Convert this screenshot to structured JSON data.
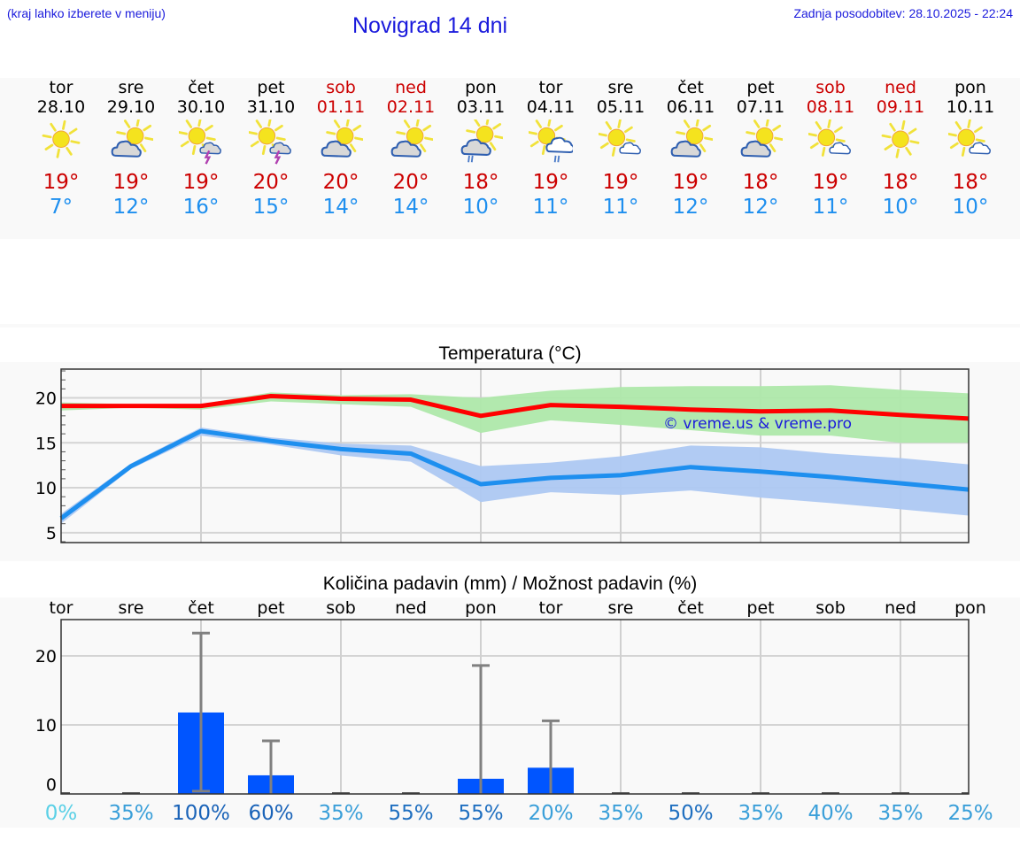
{
  "header": {
    "hint": "(kraj lahko izberete v meniju)",
    "title": "Novigrad 14 dni",
    "updated": "Zadnja posodobitev: 28.10.2025 - 22:24"
  },
  "days": [
    {
      "name": "tor",
      "date": "28.10",
      "icon": "sun-icon",
      "max": "19°",
      "min": "7°",
      "weekend": false
    },
    {
      "name": "sre",
      "date": "29.10",
      "icon": "sun-cloud-icon",
      "max": "19°",
      "min": "12°",
      "weekend": false
    },
    {
      "name": "čet",
      "date": "30.10",
      "icon": "sun-thunderstorm-icon",
      "max": "19°",
      "min": "16°",
      "weekend": false
    },
    {
      "name": "pet",
      "date": "31.10",
      "icon": "sun-thunderstorm-icon",
      "max": "20°",
      "min": "15°",
      "weekend": false
    },
    {
      "name": "sob",
      "date": "01.11",
      "icon": "sun-cloud-icon",
      "max": "20°",
      "min": "14°",
      "weekend": true
    },
    {
      "name": "ned",
      "date": "02.11",
      "icon": "sun-cloud-icon",
      "max": "20°",
      "min": "14°",
      "weekend": true
    },
    {
      "name": "pon",
      "date": "03.11",
      "icon": "sun-cloud-rain-icon",
      "max": "18°",
      "min": "10°",
      "weekend": false
    },
    {
      "name": "tor",
      "date": "04.11",
      "icon": "sun-light-cloud-rain-icon",
      "max": "19°",
      "min": "11°",
      "weekend": false
    },
    {
      "name": "sre",
      "date": "05.11",
      "icon": "sun-small-cloud-icon",
      "max": "19°",
      "min": "11°",
      "weekend": false
    },
    {
      "name": "čet",
      "date": "06.11",
      "icon": "sun-cloud-icon",
      "max": "19°",
      "min": "12°",
      "weekend": false
    },
    {
      "name": "pet",
      "date": "07.11",
      "icon": "sun-cloud-icon",
      "max": "18°",
      "min": "12°",
      "weekend": false
    },
    {
      "name": "sob",
      "date": "08.11",
      "icon": "sun-small-cloud-icon",
      "max": "19°",
      "min": "11°",
      "weekend": true
    },
    {
      "name": "ned",
      "date": "09.11",
      "icon": "sun-icon",
      "max": "18°",
      "min": "10°",
      "weekend": true
    },
    {
      "name": "pon",
      "date": "10.11",
      "icon": "sun-small-cloud-icon",
      "max": "18°",
      "min": "10°",
      "weekend": false
    }
  ],
  "colors": {
    "link_blue": "#1a1adc",
    "weekend_red": "#cc0000",
    "max_red": "#cc0000",
    "min_blue": "#1e8fef",
    "temp_max_line": "#ff0000",
    "temp_max_band": "#aee8aa",
    "temp_min_line": "#1e8fef",
    "temp_min_band": "#adc8f2",
    "precip_bar": "#0055ff",
    "error_bar": "#808080",
    "watermark": "#1a1adc"
  },
  "chart_data": [
    {
      "type": "line",
      "title": "Temperatura (°C)",
      "xlabel": "",
      "ylabel": "",
      "categories": [
        "28.10",
        "29.10",
        "30.10",
        "31.10",
        "01.11",
        "02.11",
        "03.11",
        "04.11",
        "05.11",
        "06.11",
        "07.11",
        "08.11",
        "09.11",
        "10.11"
      ],
      "ylim": [
        3.9,
        23.2
      ],
      "yticks": [
        5,
        10,
        15,
        20
      ],
      "grid": true,
      "watermark": "© vreme.us & vreme.pro",
      "series": [
        {
          "name": "max",
          "values": [
            19.1,
            19.1,
            19.1,
            20.2,
            19.9,
            19.8,
            18.0,
            19.2,
            19.0,
            18.7,
            18.5,
            18.6,
            18.1,
            17.7
          ],
          "band_low": [
            18.6,
            18.9,
            18.7,
            19.6,
            19.3,
            19.0,
            16.1,
            17.5,
            17.0,
            16.4,
            15.8,
            15.8,
            15.0,
            15.0
          ],
          "band_high": [
            19.5,
            19.3,
            19.3,
            20.6,
            20.3,
            20.4,
            20.0,
            20.8,
            21.2,
            21.3,
            21.3,
            21.4,
            20.9,
            20.5
          ]
        },
        {
          "name": "min",
          "values": [
            6.6,
            12.4,
            16.3,
            15.2,
            14.3,
            13.8,
            10.4,
            11.1,
            11.4,
            12.3,
            11.8,
            11.2,
            10.5,
            9.8
          ],
          "band_low": [
            6.0,
            12.1,
            15.8,
            14.8,
            13.6,
            12.9,
            8.4,
            9.5,
            9.2,
            9.7,
            8.9,
            8.3,
            7.6,
            6.9
          ],
          "band_high": [
            7.1,
            12.7,
            16.7,
            15.6,
            14.9,
            14.7,
            12.4,
            12.8,
            13.5,
            14.7,
            14.5,
            13.8,
            13.3,
            12.6
          ]
        }
      ]
    },
    {
      "type": "bar",
      "title": "Količina padavin (mm) / Možnost padavin (%)",
      "xlabel": "",
      "ylabel": "",
      "categories": [
        "tor",
        "sre",
        "čet",
        "pet",
        "sob",
        "ned",
        "pon",
        "tor",
        "sre",
        "čet",
        "pet",
        "sob",
        "ned",
        "pon"
      ],
      "ylim": [
        0,
        25
      ],
      "yticks": [
        0,
        10,
        20
      ],
      "grid": true,
      "series": [
        {
          "name": "precipitation_mm",
          "values": [
            0,
            0,
            11.8,
            2.7,
            0,
            0,
            2.2,
            3.8,
            0,
            0,
            0,
            0,
            0,
            0
          ]
        },
        {
          "name": "error_high",
          "values": [
            0,
            0,
            23.3,
            7.7,
            0,
            0,
            18.6,
            10.6,
            0,
            0,
            0,
            0,
            0,
            0
          ]
        },
        {
          "name": "error_low",
          "values": [
            0,
            0,
            0.4,
            0,
            0,
            0,
            0,
            0,
            0,
            0,
            0,
            0,
            0,
            0
          ]
        }
      ],
      "probability": [
        "0%",
        "35%",
        "100%",
        "60%",
        "35%",
        "55%",
        "55%",
        "20%",
        "35%",
        "50%",
        "35%",
        "40%",
        "35%",
        "25%"
      ],
      "probability_colors": [
        "#5ad0e6",
        "#3a9fd9",
        "#1a63b8",
        "#1a63b8",
        "#3a9fd9",
        "#1f6fc0",
        "#1f6fc0",
        "#3a9fd9",
        "#3a9fd9",
        "#1f6fc0",
        "#3a9fd9",
        "#3a9fd9",
        "#3a9fd9",
        "#3a9fd9"
      ]
    }
  ]
}
